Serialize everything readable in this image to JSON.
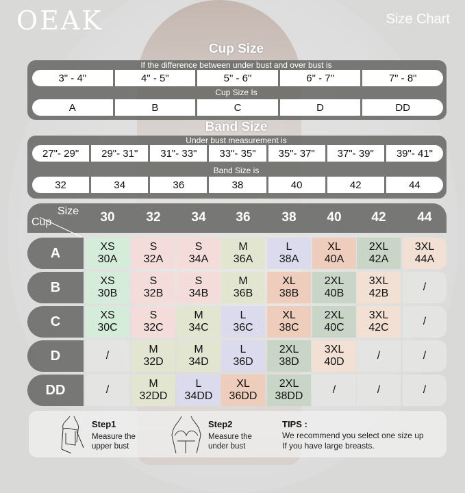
{
  "brand": "OEAK",
  "title": "Size Chart",
  "cup_section": {
    "title": "Cup Size",
    "caption1": "If the  difference between under bust and over bust is",
    "ranges": [
      "3\" - 4\"",
      "4\" - 5\"",
      "5\" - 6\"",
      "6\" - 7\"",
      "7\" - 8\""
    ],
    "caption2": "Cup Size Is",
    "cups": [
      "A",
      "B",
      "C",
      "D",
      "DD"
    ]
  },
  "band_section": {
    "title": "Band Size",
    "caption1": "Under bust measurement is",
    "ranges": [
      "27\"- 29\"",
      "29\"- 31\"",
      "31\"- 33\"",
      "33\"- 35\"",
      "35\"- 37\"",
      "37\"- 39\"",
      "39\"- 41\""
    ],
    "caption2": "Band Size is",
    "bands": [
      "32",
      "34",
      "36",
      "38",
      "40",
      "42",
      "44"
    ]
  },
  "grid": {
    "corner_size": "Size",
    "corner_cup": "Cup",
    "columns": [
      "30",
      "32",
      "34",
      "36",
      "38",
      "40",
      "42",
      "44"
    ],
    "rows": [
      {
        "cup": "A",
        "cells": [
          [
            "XS",
            "30A"
          ],
          [
            "S",
            "32A"
          ],
          [
            "S",
            "34A"
          ],
          [
            "M",
            "36A"
          ],
          [
            "L",
            "38A"
          ],
          [
            "XL",
            "40A"
          ],
          [
            "2XL",
            "42A"
          ],
          [
            "3XL",
            "44A"
          ]
        ]
      },
      {
        "cup": "B",
        "cells": [
          [
            "XS",
            "30B"
          ],
          [
            "S",
            "32B"
          ],
          [
            "S",
            "34B"
          ],
          [
            "M",
            "36B"
          ],
          [
            "XL",
            "38B"
          ],
          [
            "2XL",
            "40B"
          ],
          [
            "3XL",
            "42B"
          ],
          [
            "/",
            ""
          ]
        ]
      },
      {
        "cup": "C",
        "cells": [
          [
            "XS",
            "30C"
          ],
          [
            "S",
            "32C"
          ],
          [
            "M",
            "34C"
          ],
          [
            "L",
            "36C"
          ],
          [
            "XL",
            "38C"
          ],
          [
            "2XL",
            "40C"
          ],
          [
            "3XL",
            "42C"
          ],
          [
            "/",
            ""
          ]
        ]
      },
      {
        "cup": "D",
        "cells": [
          [
            "/",
            ""
          ],
          [
            "M",
            "32D"
          ],
          [
            "M",
            "34D"
          ],
          [
            "L",
            "36D"
          ],
          [
            "2XL",
            "38D"
          ],
          [
            "3XL",
            "40D"
          ],
          [
            "/",
            ""
          ],
          [
            "/",
            ""
          ]
        ]
      },
      {
        "cup": "DD",
        "cells": [
          [
            "/",
            ""
          ],
          [
            "M",
            "32DD"
          ],
          [
            "L",
            "34DD"
          ],
          [
            "XL",
            "36DD"
          ],
          [
            "2XL",
            "38DD"
          ],
          [
            "/",
            ""
          ],
          [
            "/",
            ""
          ],
          [
            "/",
            ""
          ]
        ]
      }
    ],
    "colors": {
      "XS": "#d6ecdb",
      "S": "#f3dcda",
      "M": "#e2e6d0",
      "L": "#dcdbee",
      "XL": "#efcdbd",
      "2XL": "#c9d5c7",
      "3XL": "#f1e0d3",
      "/": "#e4e4e3"
    }
  },
  "tips": {
    "step1_title": "Step1",
    "step1_text1": "Measure the",
    "step1_text2": "upper bust",
    "step2_title": "Step2",
    "step2_text1": "Measure the",
    "step2_text2": "under bust",
    "tips_title": "TIPS :",
    "tips_text1": "We recommend you select one size up",
    "tips_text2": "If you have large breasts."
  }
}
